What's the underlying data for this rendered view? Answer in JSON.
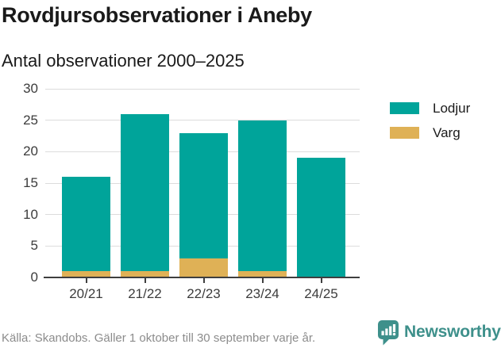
{
  "header": {
    "title": "Rovdjursobservationer i Aneby",
    "subtitle": "Antal observationer 2000–2025"
  },
  "chart_data": {
    "type": "bar",
    "stacked": true,
    "categories": [
      "20/21",
      "21/22",
      "22/23",
      "23/24",
      "24/25"
    ],
    "series": [
      {
        "name": "Lodjur",
        "color": "#00a49a",
        "values": [
          15,
          25,
          20,
          24,
          19
        ]
      },
      {
        "name": "Varg",
        "color": "#dfb156",
        "values": [
          1,
          1,
          3,
          1,
          0
        ]
      }
    ],
    "stack_bottom": "Varg",
    "totals": [
      16,
      26,
      23,
      25,
      19
    ],
    "title": "Rovdjursobservationer i Aneby",
    "subtitle": "Antal observationer 2000–2025",
    "xlabel": "",
    "ylabel": "",
    "ylim": [
      0,
      30
    ],
    "yticks": [
      0,
      5,
      10,
      15,
      20,
      25,
      30
    ],
    "grid": true,
    "legend_position": "right"
  },
  "footer": {
    "source": "Källa: Skandobs. Gäller 1 oktober till 30 september varje år.",
    "brand": "Newsworthy"
  },
  "colors": {
    "lodjur": "#00a49a",
    "varg": "#dfb156",
    "axis_text": "#3c3c3c",
    "gridline": "#dcdcdc",
    "axis_line": "#3f3f3f",
    "source_text": "#8c8c8c",
    "brand_teal": "#3e908b"
  }
}
